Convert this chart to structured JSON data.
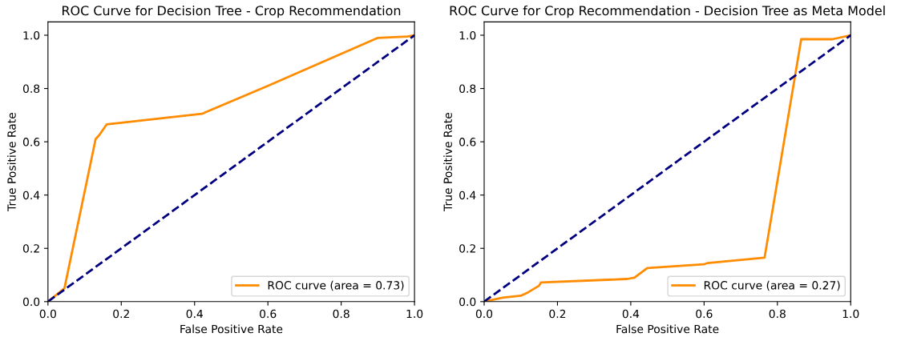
{
  "chart_data": [
    {
      "type": "line",
      "title": "ROC Curve for Decision Tree - Crop Recommendation",
      "xlabel": "False Positive Rate",
      "ylabel": "True Positive Rate",
      "xlim": [
        0,
        1
      ],
      "ylim": [
        0,
        1.05
      ],
      "xticks": [
        {
          "value": 0,
          "label": "0.0"
        },
        {
          "value": 0.2,
          "label": "0.2"
        },
        {
          "value": 0.4,
          "label": "0.4"
        },
        {
          "value": 0.6,
          "label": "0.6"
        },
        {
          "value": 0.8,
          "label": "0.8"
        },
        {
          "value": 1,
          "label": "1.0"
        }
      ],
      "yticks": [
        {
          "value": 0,
          "label": "0.0"
        },
        {
          "value": 0.2,
          "label": "0.2"
        },
        {
          "value": 0.4,
          "label": "0.4"
        },
        {
          "value": 0.6,
          "label": "0.6"
        },
        {
          "value": 0.8,
          "label": "0.8"
        },
        {
          "value": 1,
          "label": "1.0"
        }
      ],
      "legend": "bottom right",
      "grid": false,
      "series": [
        {
          "name": "ROC curve (area = 0.73)",
          "color": "#ff8c00",
          "line_style": "solid",
          "x": [
            0,
            0.045,
            0.13,
            0.14,
            0.16,
            0.42,
            0.6,
            0.9,
            0.98,
            1
          ],
          "values": [
            0,
            0.05,
            0.61,
            0.625,
            0.665,
            0.705,
            0.81,
            0.99,
            0.995,
            1
          ]
        },
        {
          "color": "#000080",
          "line_style": "dashed",
          "x": [
            0,
            1
          ],
          "values": [
            0,
            1
          ]
        }
      ]
    },
    {
      "type": "line",
      "title": "ROC Curve for Crop Recommendation - Decision Tree as Meta Model",
      "xlabel": "False Positive Rate",
      "ylabel": "True Positive Rate",
      "xlim": [
        0,
        1
      ],
      "ylim": [
        0,
        1.05
      ],
      "xticks": [
        {
          "value": 0,
          "label": "0.0"
        },
        {
          "value": 0.2,
          "label": "0.2"
        },
        {
          "value": 0.4,
          "label": "0.4"
        },
        {
          "value": 0.6,
          "label": "0.6"
        },
        {
          "value": 0.8,
          "label": "0.8"
        },
        {
          "value": 1,
          "label": "1.0"
        }
      ],
      "yticks": [
        {
          "value": 0,
          "label": "0.0"
        },
        {
          "value": 0.2,
          "label": "0.2"
        },
        {
          "value": 0.4,
          "label": "0.4"
        },
        {
          "value": 0.6,
          "label": "0.6"
        },
        {
          "value": 0.8,
          "label": "0.8"
        },
        {
          "value": 1,
          "label": "1.0"
        }
      ],
      "legend": "bottom right",
      "grid": false,
      "series": [
        {
          "name": "ROC curve (area = 0.27)",
          "color": "#ff8c00",
          "line_style": "solid",
          "x": [
            0,
            0.05,
            0.1,
            0.12,
            0.15,
            0.155,
            0.39,
            0.41,
            0.445,
            0.6,
            0.61,
            0.765,
            0.865,
            0.95,
            1
          ],
          "values": [
            0,
            0.015,
            0.022,
            0.035,
            0.06,
            0.072,
            0.085,
            0.09,
            0.126,
            0.14,
            0.145,
            0.165,
            0.985,
            0.985,
            1
          ]
        },
        {
          "color": "#000080",
          "line_style": "dashed",
          "x": [
            0,
            1
          ],
          "values": [
            0,
            1
          ]
        }
      ]
    }
  ]
}
